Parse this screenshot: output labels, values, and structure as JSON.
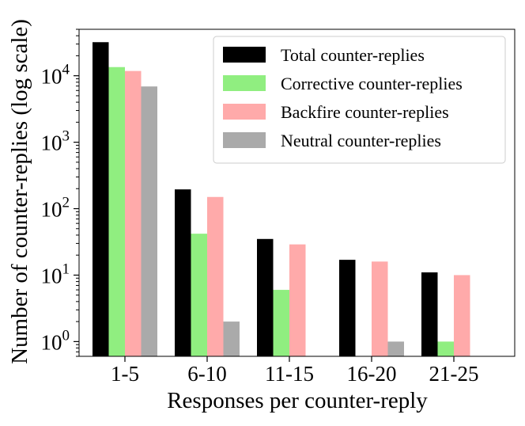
{
  "chart_data": {
    "type": "bar",
    "title": "",
    "xlabel": "Responses per counter-reply",
    "ylabel": "Number of counter-replies (log scale)",
    "yscale": "log",
    "ylim": [
      0.6,
      50000
    ],
    "categories": [
      "1-5",
      "6-10",
      "11-15",
      "16-20",
      "21-25"
    ],
    "series": [
      {
        "name": "Total counter-replies",
        "color": "#000000",
        "values": [
          32000,
          195,
          35,
          17,
          11
        ]
      },
      {
        "name": "Corrective counter-replies",
        "color": "#90ee80",
        "values": [
          13500,
          42,
          6,
          null,
          1
        ]
      },
      {
        "name": "Backfire counter-replies",
        "color": "#ffaaaa",
        "values": [
          11800,
          150,
          29,
          16,
          10
        ]
      },
      {
        "name": "Neutral counter-replies",
        "color": "#aaaaaa",
        "values": [
          6900,
          2,
          null,
          1,
          null
        ]
      }
    ],
    "yticks": [
      {
        "value": 1,
        "base": "10",
        "exp": "0"
      },
      {
        "value": 10,
        "base": "10",
        "exp": "1"
      },
      {
        "value": 100,
        "base": "10",
        "exp": "2"
      },
      {
        "value": 1000,
        "base": "10",
        "exp": "3"
      },
      {
        "value": 10000,
        "base": "10",
        "exp": "4"
      }
    ],
    "legend": {
      "position": "top-right"
    },
    "grid": false
  }
}
